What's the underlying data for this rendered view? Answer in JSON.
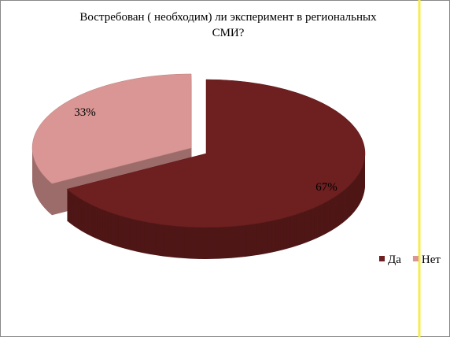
{
  "chart_data": {
    "type": "pie3d",
    "title": "Востребован (   необходим) ли эксперимент в региональных  СМИ?",
    "categories": [
      "Да",
      "Нет"
    ],
    "values": [
      67,
      33
    ],
    "value_labels": [
      "67%",
      "33%"
    ],
    "colors": [
      "#6e1f1f",
      "#d99694"
    ],
    "legend": "right"
  }
}
